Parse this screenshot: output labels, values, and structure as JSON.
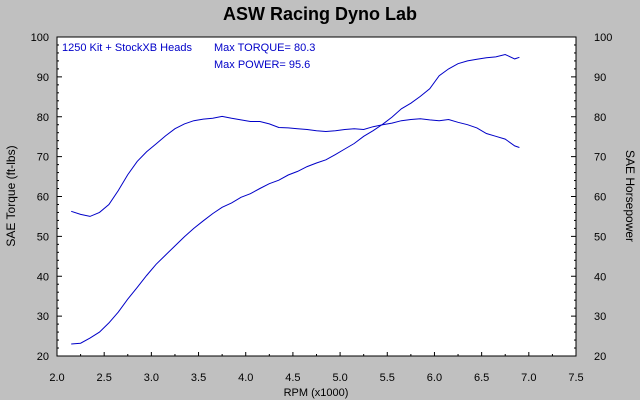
{
  "chart_data": {
    "type": "line",
    "title": "ASW Racing Dyno Lab",
    "xlabel": "RPM (x1000)",
    "ylabel_left": "SAE Torque (ft-lbs)",
    "ylabel_right": "SAE Horsepower",
    "xlim": [
      2.0,
      7.5
    ],
    "ylim": [
      20,
      100
    ],
    "x_ticks": [
      "2.0",
      "2.5",
      "3.0",
      "3.5",
      "4.0",
      "4.5",
      "5.0",
      "5.5",
      "6.0",
      "6.5",
      "7.0",
      "7.5"
    ],
    "y_ticks": [
      "20",
      "30",
      "40",
      "50",
      "60",
      "70",
      "80",
      "90",
      "100"
    ],
    "grid": false,
    "annotations": {
      "line1": "1250 Kit + StockXB Heads",
      "line2": "Max TORQUE= 80.3",
      "line3": "Max POWER= 95.6"
    },
    "colors": {
      "series": "#0000c8",
      "background": "#c0c0c0",
      "plot": "#ffffff"
    },
    "series": [
      {
        "axis": "left",
        "x": [
          2.15,
          2.25,
          2.35,
          2.45,
          2.55,
          2.65,
          2.75,
          2.85,
          2.95,
          3.05,
          3.15,
          3.25,
          3.35,
          3.45,
          3.55,
          3.65,
          3.75,
          3.85,
          3.95,
          4.05,
          4.15,
          4.25,
          4.35,
          4.45,
          4.55,
          4.65,
          4.75,
          4.85,
          4.95,
          5.05,
          5.15,
          5.25,
          5.35,
          5.45,
          5.55,
          5.65,
          5.75,
          5.85,
          5.95,
          6.05,
          6.15,
          6.25,
          6.35,
          6.45,
          6.55,
          6.65,
          6.75,
          6.85,
          6.9
        ],
        "y": [
          56.3,
          55.5,
          55.0,
          56.0,
          58.0,
          61.5,
          65.5,
          68.8,
          71.2,
          73.2,
          75.2,
          77.0,
          78.2,
          79.0,
          79.4,
          79.6,
          80.1,
          79.6,
          79.2,
          78.8,
          78.8,
          78.2,
          77.3,
          77.2,
          77.0,
          76.8,
          76.5,
          76.3,
          76.5,
          76.8,
          77.0,
          76.8,
          77.5,
          78.0,
          78.4,
          79.0,
          79.3,
          79.5,
          79.2,
          79.0,
          79.3,
          78.6,
          78.0,
          77.2,
          75.8,
          75.1,
          74.4,
          72.7,
          72.3
        ]
      },
      {
        "axis": "right",
        "x": [
          2.15,
          2.25,
          2.35,
          2.45,
          2.55,
          2.65,
          2.75,
          2.85,
          2.95,
          3.05,
          3.15,
          3.25,
          3.35,
          3.45,
          3.55,
          3.65,
          3.75,
          3.85,
          3.95,
          4.05,
          4.15,
          4.25,
          4.35,
          4.45,
          4.55,
          4.65,
          4.75,
          4.85,
          4.95,
          5.05,
          5.15,
          5.25,
          5.35,
          5.45,
          5.55,
          5.65,
          5.75,
          5.85,
          5.95,
          6.05,
          6.15,
          6.25,
          6.35,
          6.45,
          6.55,
          6.65,
          6.75,
          6.85,
          6.9
        ],
        "y": [
          23.0,
          23.2,
          24.5,
          26.0,
          28.3,
          31.0,
          34.3,
          37.2,
          40.2,
          43.0,
          45.3,
          47.6,
          49.9,
          52.0,
          53.9,
          55.7,
          57.3,
          58.4,
          59.8,
          60.7,
          62.0,
          63.2,
          64.1,
          65.4,
          66.3,
          67.5,
          68.4,
          69.2,
          70.5,
          71.9,
          73.3,
          75.1,
          76.5,
          78.1,
          79.9,
          82.0,
          83.4,
          85.1,
          87.0,
          90.3,
          92.0,
          93.3,
          94.0,
          94.4,
          94.8,
          95.0,
          95.6,
          94.5,
          94.9
        ]
      }
    ]
  }
}
